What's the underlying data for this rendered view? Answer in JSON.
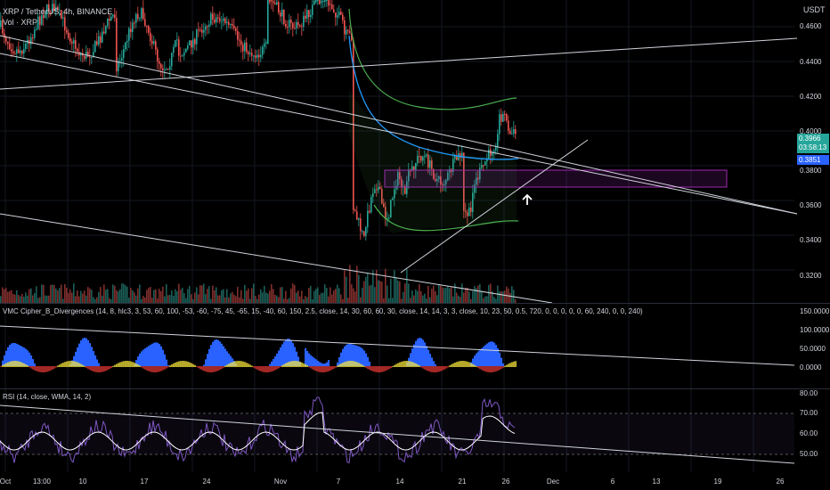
{
  "header": {
    "symbol": "XRP / TetherUS, 4h, BINANCE",
    "volume_label": "Vol · XRP",
    "currency": "USDT"
  },
  "price_axis": [
    "0.4600",
    "0.4400",
    "0.4200",
    "0.4000",
    "0.3800",
    "0.3600",
    "0.3400",
    "0.3200"
  ],
  "price_badges": {
    "last": "0.3966",
    "countdown": "03:58:13",
    "vwap": "0.3851"
  },
  "indicator_1": {
    "title": "VMC Cipher_B_Divergences (14, 8, hlc3, 3, 53, 60, 100, -53, -60, -75, 45, -65, 15, -40, 60, 150, 2.5, close, 14, 30, 60, 60, 30, close, 14, 14, 3, 3, close, 10, 23, 50, 0.5, 720, 0, 0, 0, 0, 0, 60, 240, 0, 0, 240)",
    "axis": [
      "150.0000",
      "100.0000",
      "50.0000",
      "0.0000"
    ]
  },
  "indicator_2": {
    "title": "RSI (14, close, WMA, 14, 2)",
    "axis": [
      "80.00",
      "70.00",
      "60.00",
      "50.00"
    ]
  },
  "time_axis": [
    "Oct",
    "13:00",
    "10",
    "17",
    "24",
    "Nov",
    "7",
    "14",
    "21",
    "26",
    "Dec",
    "6",
    "13",
    "19",
    "26"
  ],
  "colors": {
    "up": "#26a69a",
    "down": "#ef5350",
    "trendline": "#d1d4dc",
    "vwap": "#2196f3",
    "band": "#4caf50",
    "zone": "#9c27b0",
    "rsi": "#7e57c2",
    "cipher_wave": "#2962ff",
    "cipher_mf": "#ffeb3b"
  },
  "icons": {
    "annotation": "up-arrow-icon"
  }
}
